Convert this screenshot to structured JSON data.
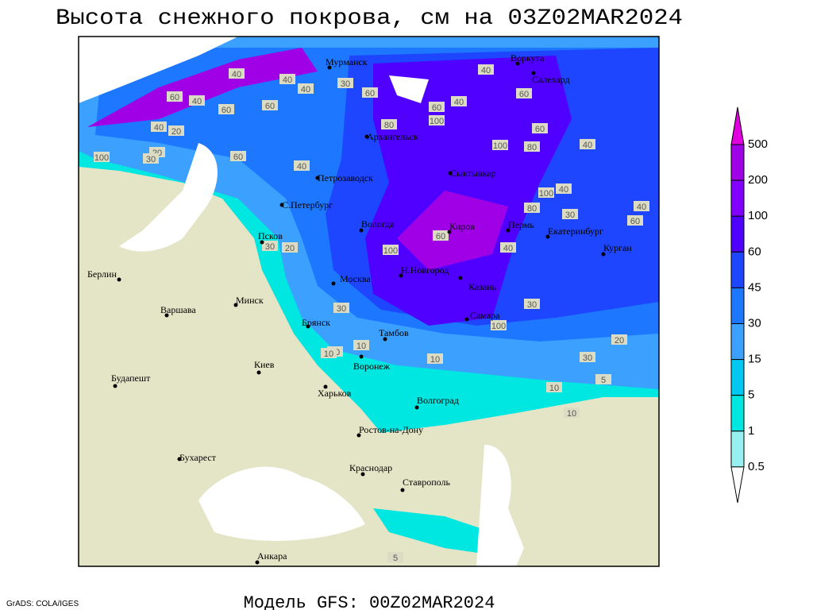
{
  "header": {
    "title": "Высота снежного покрова, см на 03Z02MAR2024"
  },
  "footer": {
    "credit": "GrADS: COLA/IGES",
    "model": "Модель GFS: 00Z02MAR2024"
  },
  "cities": [
    "Мурманск",
    "Воркута",
    "Салехард",
    "Архангельск",
    "Петрозаводск",
    "Сыктывкар",
    "С.Петербург",
    "Псков",
    "Вологда",
    "Киров",
    "Пермь",
    "Екатеринбург",
    "Курган",
    "Берлин",
    "Минск",
    "Москва",
    "Н.Новгород",
    "Казань",
    "Варшава",
    "Брянск",
    "Тамбов",
    "Самара",
    "Киев",
    "Воронеж",
    "Будапешт",
    "Харьков",
    "Волгоград",
    "Ростов-на-Дону",
    "Бухарест",
    "Краснодар",
    "Ставрополь",
    "Анкара"
  ],
  "contour_labels": [
    40,
    40,
    30,
    60,
    40,
    60,
    40,
    20,
    60,
    100,
    20,
    40,
    60,
    80,
    100,
    40,
    60,
    80,
    100,
    60,
    40,
    100,
    30,
    60,
    40,
    80,
    100,
    60,
    40,
    30,
    100,
    20,
    10,
    30,
    10,
    10,
    5,
    30,
    20,
    40,
    60,
    40,
    30,
    10,
    5,
    10,
    40,
    60,
    30,
    20
  ],
  "legend": {
    "levels": [
      500,
      200,
      100,
      60,
      45,
      30,
      15,
      5,
      1,
      0.5
    ],
    "colors": [
      "#e000e0",
      "#a000e6",
      "#8200ff",
      "#5000ff",
      "#1e46ff",
      "#1e78ff",
      "#3ca0ff",
      "#00c8f0",
      "#00e6e0",
      "#96f0f0",
      "#ffffff"
    ]
  }
}
